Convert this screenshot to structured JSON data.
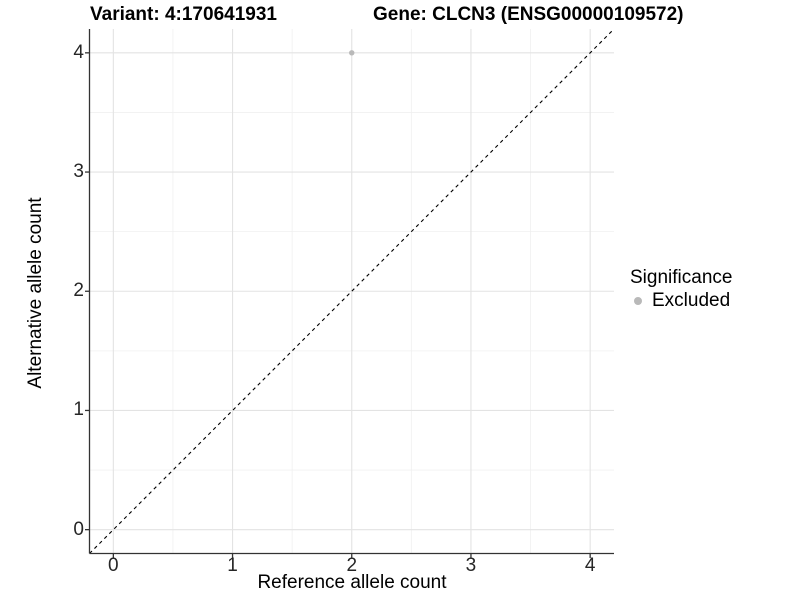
{
  "chart_data": {
    "type": "scatter",
    "title_left": "Variant: 4:170641931",
    "title_right": "Gene: CLCN3 (ENSG00000109572)",
    "xlabel": "Reference allele count",
    "ylabel": "Alternative allele count",
    "xlim": [
      -0.2,
      4.2
    ],
    "ylim": [
      -0.2,
      4.2
    ],
    "xticks": [
      0,
      1,
      2,
      3,
      4
    ],
    "yticks": [
      0,
      1,
      2,
      3,
      4
    ],
    "xminor": [
      0.5,
      1.5,
      2.5,
      3.5
    ],
    "yminor": [
      0.5,
      1.5,
      2.5,
      3.5
    ],
    "grid": "major+minor on white panel",
    "identity_line": {
      "style": "dashed",
      "color": "#000000",
      "x1": -0.2,
      "y1": -0.2,
      "x2": 4.2,
      "y2": 4.2
    },
    "series": [
      {
        "name": "Excluded",
        "color": "#b9b9b9",
        "points": [
          {
            "x": 2,
            "y": 4
          }
        ]
      }
    ],
    "legend": {
      "title": "Significance",
      "position": "right",
      "items": [
        {
          "label": "Excluded",
          "color": "#b9b9b9"
        }
      ]
    },
    "colors": {
      "background": "#ffffff",
      "grid_major": "#e3e3e3",
      "grid_minor": "#f0f0f0",
      "axis": "#333333",
      "tick_text": "#262626"
    }
  }
}
